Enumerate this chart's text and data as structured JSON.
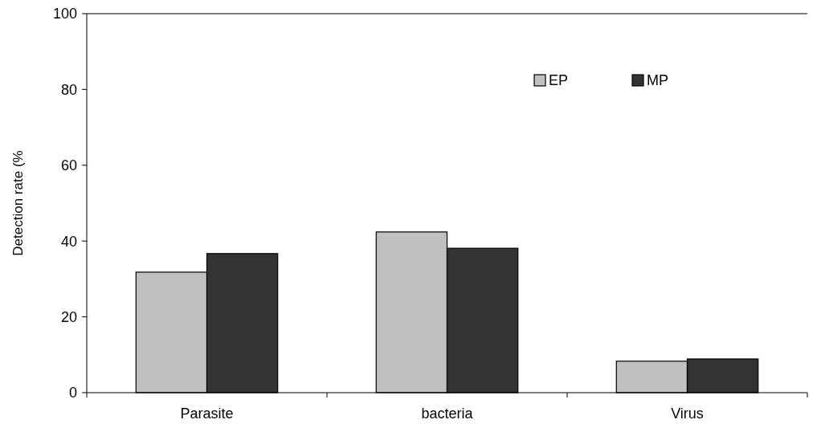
{
  "chart_data": {
    "type": "bar",
    "ylabel": "Detection rate (%",
    "categories": [
      "Parasite",
      "bacteria",
      "Virus"
    ],
    "series": [
      {
        "name": "EP",
        "color": "#c0c0c0",
        "values": [
          31.8,
          42.4,
          8.3
        ]
      },
      {
        "name": "MP",
        "color": "#333333",
        "values": [
          36.7,
          38.1,
          8.9
        ]
      }
    ],
    "ylim": [
      0,
      100
    ],
    "yticks": [
      0,
      20,
      40,
      60,
      80,
      100
    ],
    "grid": false,
    "legend": "top right"
  }
}
